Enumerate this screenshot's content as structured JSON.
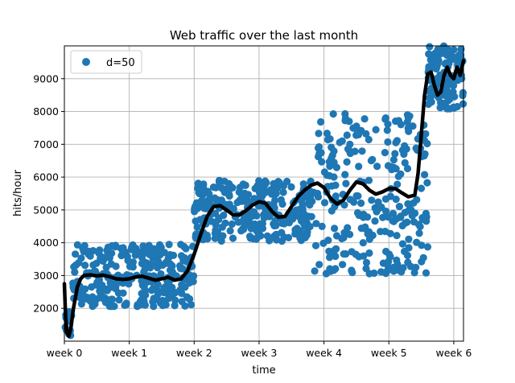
{
  "chart_data": {
    "type": "scatter",
    "title": "Web traffic over the last month",
    "xlabel": "time",
    "ylabel": "hits/hour",
    "xlim": [
      0,
      6.15
    ],
    "ylim": [
      1000,
      10000
    ],
    "x_ticks": [
      0,
      1,
      2,
      3,
      4,
      5,
      6
    ],
    "x_tick_labels": [
      "week 0",
      "week 1",
      "week 2",
      "week 3",
      "week 4",
      "week 5",
      "week 6"
    ],
    "y_ticks": [
      2000,
      3000,
      4000,
      5000,
      6000,
      7000,
      8000,
      9000
    ],
    "y_tick_labels": [
      "2000",
      "3000",
      "4000",
      "5000",
      "6000",
      "7000",
      "8000",
      "9000"
    ],
    "grid": true,
    "legend": {
      "position": "top-left",
      "entries": [
        "d=50"
      ]
    },
    "series": [
      {
        "name": "d=50",
        "kind": "scatter",
        "color": "#1f77b4",
        "bands": [
          {
            "x_start": 0.0,
            "x_end": 0.12,
            "y_min": 1000,
            "y_max": 1900,
            "count": 14
          },
          {
            "x_start": 0.12,
            "x_end": 2.0,
            "y_min": 2050,
            "y_max": 3950,
            "count": 290
          },
          {
            "x_start": 2.0,
            "x_end": 3.85,
            "y_min": 4050,
            "y_max": 5950,
            "count": 290
          },
          {
            "x_start": 3.85,
            "x_end": 5.6,
            "y_min": 3050,
            "y_max": 7950,
            "count": 260
          },
          {
            "x_start": 5.6,
            "x_end": 6.15,
            "y_min": 8050,
            "y_max": 10000,
            "count": 120
          }
        ]
      },
      {
        "name": "",
        "kind": "line",
        "color": "#000000",
        "x": [
          0.0,
          0.02,
          0.04,
          0.07,
          0.1,
          0.14,
          0.2,
          0.25,
          0.3,
          0.4,
          0.5,
          0.6,
          0.7,
          0.8,
          0.9,
          1.0,
          1.1,
          1.2,
          1.3,
          1.4,
          1.5,
          1.6,
          1.7,
          1.8,
          1.9,
          2.0,
          2.1,
          2.2,
          2.3,
          2.4,
          2.5,
          2.6,
          2.7,
          2.8,
          2.9,
          3.0,
          3.1,
          3.2,
          3.3,
          3.4,
          3.5,
          3.6,
          3.7,
          3.8,
          3.9,
          4.0,
          4.1,
          4.2,
          4.3,
          4.4,
          4.5,
          4.6,
          4.7,
          4.8,
          4.9,
          5.0,
          5.1,
          5.2,
          5.3,
          5.4,
          5.45,
          5.5,
          5.55,
          5.6,
          5.65,
          5.7,
          5.75,
          5.8,
          5.85,
          5.9,
          5.95,
          6.0,
          6.05,
          6.1,
          6.15
        ],
        "y": [
          2750,
          1700,
          1250,
          1150,
          1400,
          2000,
          2650,
          2900,
          3000,
          3020,
          2990,
          3010,
          2960,
          2900,
          2880,
          2900,
          2960,
          2980,
          2920,
          2860,
          2900,
          2950,
          2860,
          2900,
          3150,
          3650,
          4250,
          4800,
          5100,
          5130,
          5000,
          4850,
          4850,
          4980,
          5150,
          5250,
          5200,
          4950,
          4780,
          4800,
          5100,
          5400,
          5600,
          5750,
          5820,
          5680,
          5350,
          5180,
          5300,
          5600,
          5850,
          5800,
          5600,
          5480,
          5550,
          5650,
          5650,
          5520,
          5400,
          5450,
          6100,
          7300,
          8500,
          9150,
          9200,
          8800,
          8500,
          8600,
          9100,
          9350,
          9100,
          9000,
          9350,
          9100,
          9550
        ]
      }
    ]
  }
}
